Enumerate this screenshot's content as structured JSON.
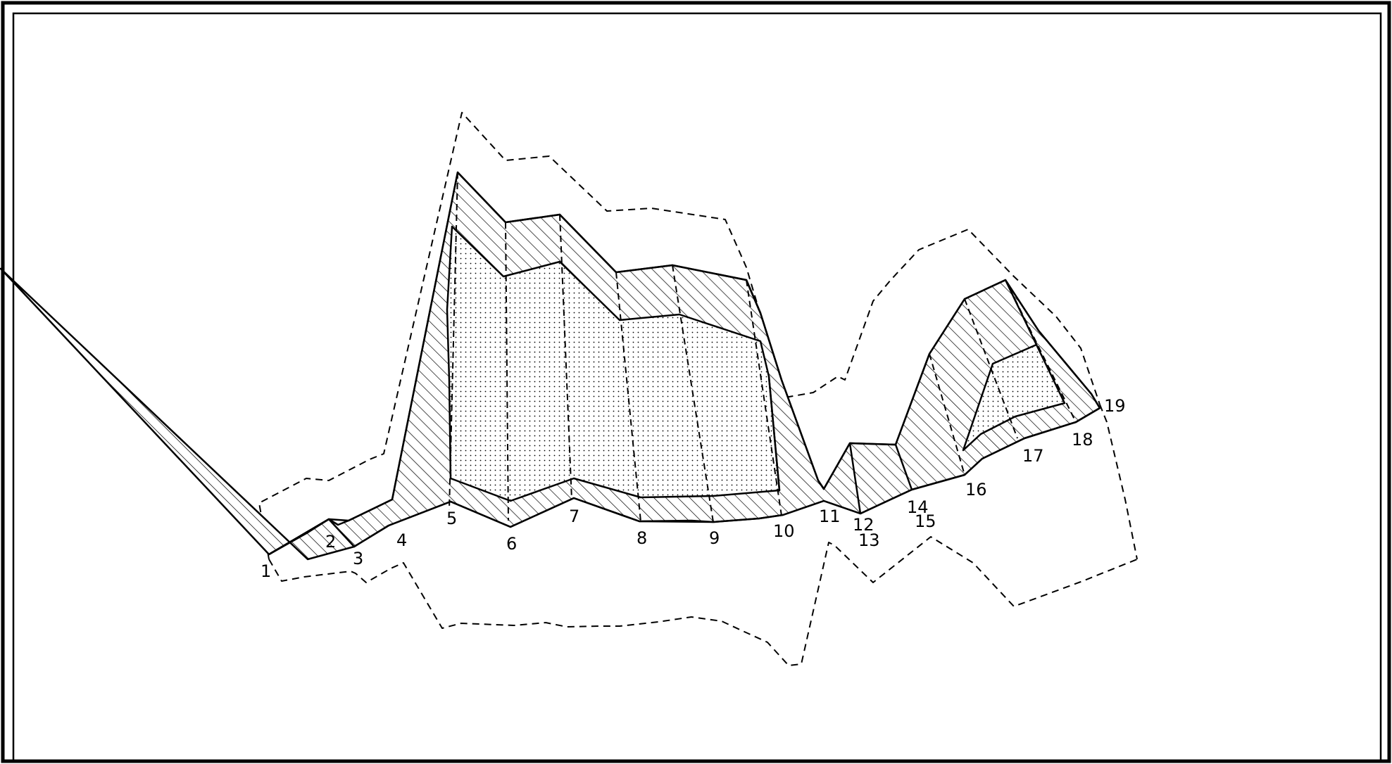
{
  "figure": {
    "stations": [
      "1",
      "2",
      "3",
      "4",
      "5",
      "6",
      "7",
      "8",
      "9",
      "10",
      "11",
      "12",
      "13",
      "14",
      "15",
      "16",
      "17",
      "18",
      "19"
    ]
  },
  "colors": {
    "line": "#000000",
    "background": "#ffffff",
    "hatch": "#000000",
    "stipple": "#000000"
  }
}
